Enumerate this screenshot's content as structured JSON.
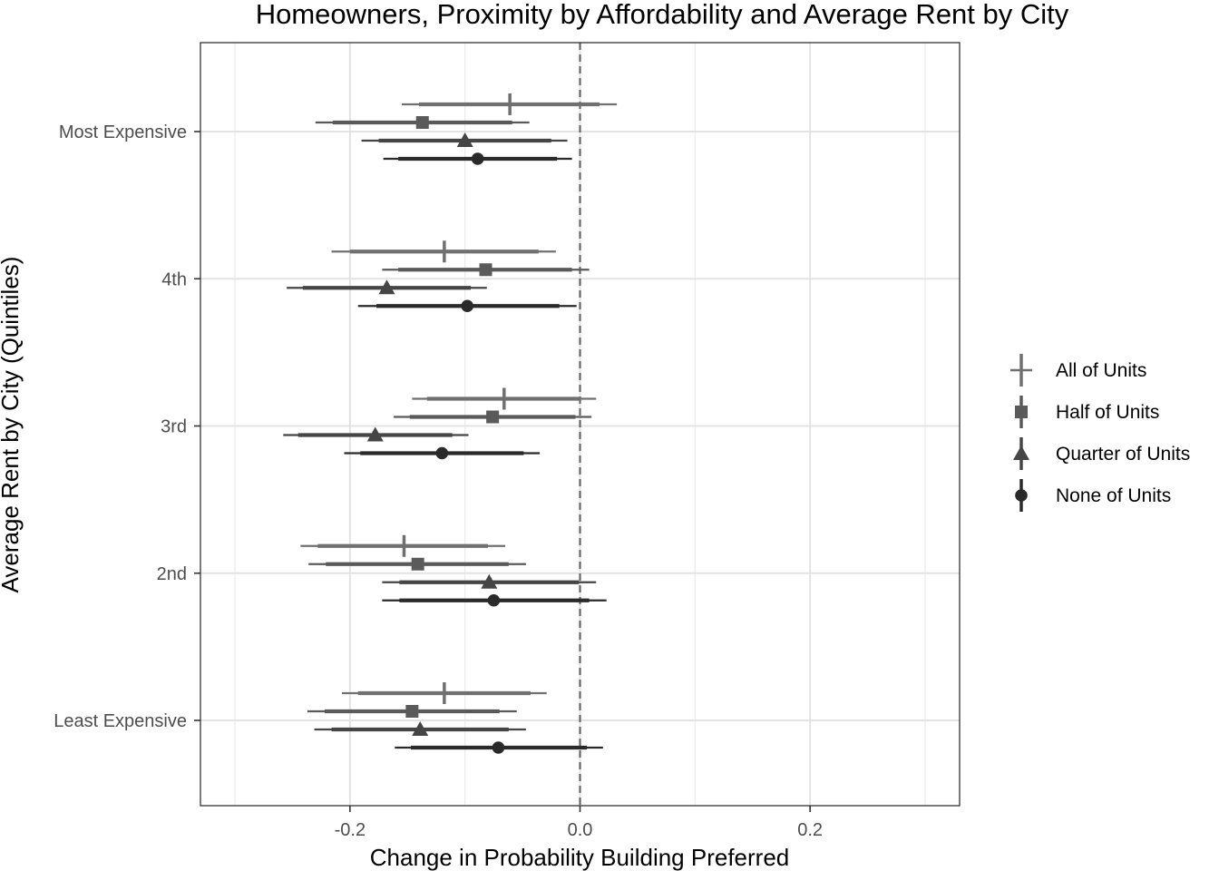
{
  "chart_data": {
    "type": "forest",
    "title": "Homeowners, Proximity by Affordability and Average Rent by City",
    "xlabel": "Change in Probability Building Preferred",
    "ylabel": "Average Rent by City (Quintiles)",
    "xlim": [
      -0.33,
      0.33
    ],
    "x_ticks": [
      -0.2,
      0.0,
      0.2
    ],
    "x_tick_labels": [
      "-0.2",
      "0.0",
      "0.2"
    ],
    "reference_line": 0.0,
    "categories": [
      "Most Expensive",
      "4th",
      "3rd",
      "2nd",
      "Least Expensive"
    ],
    "grid": true,
    "legend_position": "right",
    "series": [
      {
        "name": "All of Units",
        "shape": "vertical-bar",
        "color": "#707070",
        "estimate": [
          -0.061,
          -0.118,
          -0.066,
          -0.153,
          -0.118
        ],
        "ci90": [
          [
            -0.14,
            0.017
          ],
          [
            -0.2,
            -0.036
          ],
          [
            -0.133,
            0.001
          ],
          [
            -0.228,
            -0.08
          ],
          [
            -0.193,
            -0.043
          ]
        ],
        "ci95": [
          [
            -0.155,
            0.032
          ],
          [
            -0.216,
            -0.021
          ],
          [
            -0.146,
            0.014
          ],
          [
            -0.243,
            -0.065
          ],
          [
            -0.207,
            -0.029
          ]
        ]
      },
      {
        "name": "Half of Units",
        "shape": "square",
        "color": "#5a5a5a",
        "estimate": [
          -0.137,
          -0.082,
          -0.076,
          -0.141,
          -0.146
        ],
        "ci90": [
          [
            -0.215,
            -0.059
          ],
          [
            -0.158,
            -0.007
          ],
          [
            -0.148,
            -0.004
          ],
          [
            -0.221,
            -0.062
          ],
          [
            -0.222,
            -0.07
          ]
        ],
        "ci95": [
          [
            -0.23,
            -0.044
          ],
          [
            -0.172,
            0.008
          ],
          [
            -0.162,
            0.01
          ],
          [
            -0.236,
            -0.047
          ],
          [
            -0.237,
            -0.055
          ]
        ]
      },
      {
        "name": "Quarter of Units",
        "shape": "triangle",
        "color": "#454545",
        "estimate": [
          -0.1,
          -0.168,
          -0.178,
          -0.079,
          -0.139
        ],
        "ci90": [
          [
            -0.175,
            -0.025
          ],
          [
            -0.241,
            -0.095
          ],
          [
            -0.245,
            -0.111
          ],
          [
            -0.157,
            -0.001
          ],
          [
            -0.216,
            -0.062
          ]
        ],
        "ci95": [
          [
            -0.19,
            -0.011
          ],
          [
            -0.255,
            -0.081
          ],
          [
            -0.258,
            -0.097
          ],
          [
            -0.172,
            0.014
          ],
          [
            -0.231,
            -0.047
          ]
        ]
      },
      {
        "name": "None of Units",
        "shape": "circle",
        "color": "#2a2a2a",
        "estimate": [
          -0.089,
          -0.098,
          -0.12,
          -0.075,
          -0.071
        ],
        "ci90": [
          [
            -0.158,
            -0.02
          ],
          [
            -0.177,
            -0.018
          ],
          [
            -0.191,
            -0.049
          ],
          [
            -0.157,
            0.008
          ],
          [
            -0.147,
            0.006
          ]
        ],
        "ci95": [
          [
            -0.171,
            -0.007
          ],
          [
            -0.193,
            -0.003
          ],
          [
            -0.205,
            -0.035
          ],
          [
            -0.172,
            0.023
          ],
          [
            -0.161,
            0.02
          ]
        ]
      }
    ]
  }
}
